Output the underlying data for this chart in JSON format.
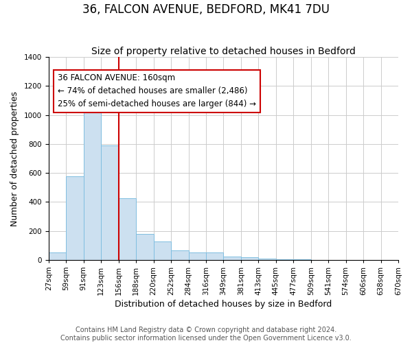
{
  "title": "36, FALCON AVENUE, BEDFORD, MK41 7DU",
  "subtitle": "Size of property relative to detached houses in Bedford",
  "xlabel": "Distribution of detached houses by size in Bedford",
  "ylabel": "Number of detached properties",
  "footnote1": "Contains HM Land Registry data © Crown copyright and database right 2024.",
  "footnote2": "Contains public sector information licensed under the Open Government Licence v3.0.",
  "bin_labels": [
    "27sqm",
    "59sqm",
    "91sqm",
    "123sqm",
    "156sqm",
    "188sqm",
    "220sqm",
    "252sqm",
    "284sqm",
    "316sqm",
    "349sqm",
    "381sqm",
    "413sqm",
    "445sqm",
    "477sqm",
    "509sqm",
    "541sqm",
    "574sqm",
    "606sqm",
    "638sqm",
    "670sqm"
  ],
  "bar_heights": [
    50,
    575,
    1040,
    790,
    425,
    180,
    125,
    65,
    50,
    50,
    25,
    20,
    10,
    5,
    2,
    1,
    0,
    0,
    0,
    0
  ],
  "bar_color": "#cce0f0",
  "bar_edge_color": "#7fbee0",
  "vline_position": 4.0,
  "vline_color": "#cc0000",
  "ylim": [
    0,
    1400
  ],
  "yticks": [
    0,
    200,
    400,
    600,
    800,
    1000,
    1200,
    1400
  ],
  "annotation_title": "36 FALCON AVENUE: 160sqm",
  "annotation_line1": "← 74% of detached houses are smaller (2,486)",
  "annotation_line2": "25% of semi-detached houses are larger (844) →",
  "title_fontsize": 12,
  "subtitle_fontsize": 10,
  "axis_label_fontsize": 9,
  "tick_fontsize": 7.5,
  "annotation_fontsize": 8.5,
  "footnote_fontsize": 7
}
